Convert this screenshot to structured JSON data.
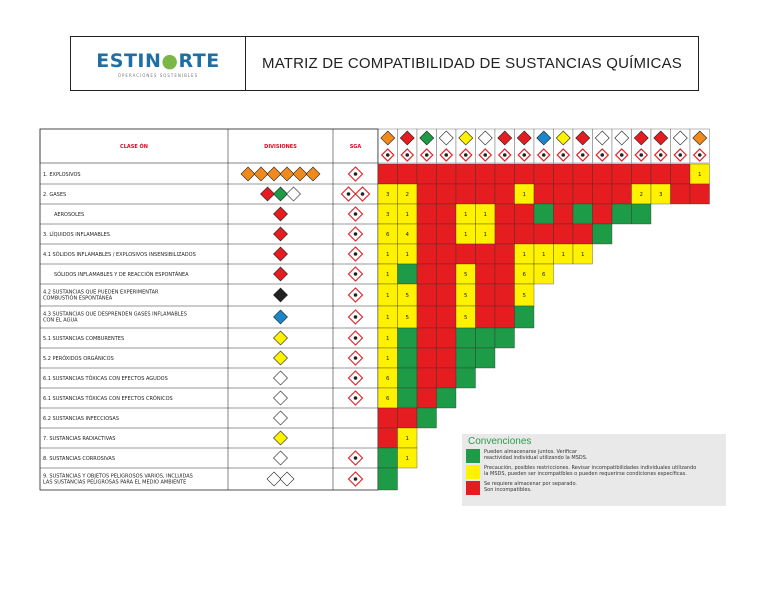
{
  "header": {
    "logo_name": "ESTINORTE",
    "logo_tagline": "OPERACIONES SOSTENIBLES",
    "title": "MATRIZ DE COMPATIBILIDAD DE SUSTANCIAS QUÍMICAS"
  },
  "colors": {
    "red": "#e51d20",
    "yellow": "#fff200",
    "green": "#1e9b47",
    "header_text": "#e8001c"
  },
  "columns": {
    "clase": "CLASE ÓN",
    "divisiones": "DIVISIONES",
    "sga": "SGA"
  },
  "rows": [
    {
      "label": "1.  EXPLOSIVOS",
      "divisions_icon": "explosive-diamond-icons",
      "sga_icon": "exploding-bomb-icon"
    },
    {
      "label": "2.  GASES",
      "divisions_icon": "gas-diamond-icons",
      "sga_icon": "flame-gas-cylinder-icons"
    },
    {
      "label": "AEROSOLES",
      "divisions_icon": "flammable-diamond-icon",
      "sga_icon": "flame-icon"
    },
    {
      "label": "3.  LÍQUIDOS INFLAMABLES",
      "divisions_icon": "flammable-diamond-icon",
      "sga_icon": "flame-icon"
    },
    {
      "label": "4.1  SÓLIDOS INFLAMABLES / EXPLOSIVOS INSENSIBILIZADOS",
      "divisions_icon": "flammable-solid-diamond-icon",
      "sga_icon": "flame-icon"
    },
    {
      "label": "SÓLIDOS INFLAMABLES Y DE REACCIÓN ESPONTÁNEA",
      "divisions_icon": "flammable-solid-diamond-icon",
      "sga_icon": "flame-icon"
    },
    {
      "label": "4.2 SUSTANCIAS QUE PUEDEN EXPERIMENTAR\nCOMBUSTIÓN ESPONTÁNEA",
      "divisions_icon": "spontaneous-combustion-diamond-icon",
      "sga_icon": "flame-icon"
    },
    {
      "label": "4.3 SUSTANCIAS QUE DESPRENDEN GASES INFLAMABLES\nCON EL AGUA",
      "divisions_icon": "dangerous-when-wet-diamond-icon",
      "sga_icon": "flame-icon"
    },
    {
      "label": "5.1 SUSTANCIAS COMBURENTES",
      "divisions_icon": "oxidizer-diamond-icon",
      "sga_icon": "flame-over-circle-icon"
    },
    {
      "label": "5.2 PERÓXIDOS ORGÁNICOS",
      "divisions_icon": "organic-peroxide-diamond-icon",
      "sga_icon": "flame-icon"
    },
    {
      "label": "6.1  SUSTANCIAS TÓXICAS CON EFECTOS AGUDOS",
      "divisions_icon": "toxic-skull-diamond-icon",
      "sga_icon": "skull-crossbones-icon"
    },
    {
      "label": "6.1  SUSTANCIAS TÓXICAS CON EFECTOS CRÓNICOS",
      "divisions_icon": "toxic-skull-diamond-icon",
      "sga_icon": "health-hazard-icon"
    },
    {
      "label": "6.2 SUSTANCIAS INFECCIOSAS",
      "divisions_icon": "biohazard-diamond-icon",
      "sga_icon": ""
    },
    {
      "label": "7.  SUSTANCIAS RADIACTIVAS",
      "divisions_icon": "radioactive-diamond-icon",
      "sga_icon": ""
    },
    {
      "label": "8.  SUSTANCIAS CORROSIVAS",
      "divisions_icon": "corrosive-diamond-icon",
      "sga_icon": "corrosion-icon"
    },
    {
      "label": "9.  SUSTANCIAS Y OBJETOS PELIGROSOS VARIOS, INCLUIDAS\nLAS SUSTANCIAS PELIGROSAS PARA EL MEDIO AMBIENTE",
      "divisions_icon": "miscellaneous-diamond-icon",
      "sga_icon": "environment-icon"
    }
  ],
  "matrix_rows": [
    "RRRRRRRRRRRRRRRRY",
    "YYRRRRRYRRRRRYYRR",
    "YYRRYYRRGRGRGG",
    "YYRRYYRRRRRG",
    "YYRRRRRYYYY",
    "YGRRYRRYY",
    "YYRRYRRY",
    "YYRRYRRG",
    "YGRRGGG",
    "YGRRGG",
    "YGRRG",
    "YGRG",
    "RRG",
    "RY",
    "GY",
    "G"
  ],
  "matrix_numbers": [
    [
      "",
      "",
      "",
      "",
      "",
      "",
      "",
      "",
      "",
      "",
      "",
      "",
      "",
      "",
      "",
      "",
      "1"
    ],
    [
      "3",
      "2",
      "",
      "",
      "",
      "",
      "",
      "1",
      "",
      "",
      "",
      "",
      "",
      "2",
      "3",
      "",
      ""
    ],
    [
      "3",
      "1",
      "",
      "",
      "1",
      "1",
      "",
      "",
      "",
      "",
      "",
      "",
      "",
      ""
    ],
    [
      "6",
      "4",
      "",
      "",
      "1",
      "1",
      "",
      "",
      "",
      "",
      "",
      ""
    ],
    [
      "1",
      "1",
      "",
      "",
      "",
      "",
      "",
      "1",
      "1",
      "1",
      "1"
    ],
    [
      "1",
      "",
      "",
      "",
      "5",
      "",
      "",
      "6",
      "6"
    ],
    [
      "1",
      "5",
      "",
      "",
      "5",
      "",
      "",
      "5"
    ],
    [
      "1",
      "5",
      "",
      "",
      "5",
      "",
      "",
      ""
    ],
    [
      "1",
      "",
      "",
      "",
      "",
      "",
      ""
    ],
    [
      "1",
      "",
      "",
      "",
      "",
      ""
    ],
    [
      "6",
      "",
      "",
      "",
      ""
    ],
    [
      "6",
      "",
      "",
      ""
    ],
    [
      "",
      "",
      ""
    ],
    [
      "",
      "1"
    ],
    [
      "",
      "1"
    ],
    [
      ""
    ]
  ],
  "legend": {
    "title": "Convenciones",
    "items": [
      {
        "color": "#1e9b47",
        "text": "Pueden  almacenarse juntos. Verificar\nreactividad individual utilizando la MSDS."
      },
      {
        "color": "#fff200",
        "text": "Precaución, posibles restricciones. Revisar incompatibilidades individuales utilizando\nla MSDS, pueden ser incompatibles o pueden requerirse condiciones específicas."
      },
      {
        "color": "#e51d20",
        "text": "Se requiere almacenar por separado.\nSon incompatibles."
      }
    ]
  }
}
